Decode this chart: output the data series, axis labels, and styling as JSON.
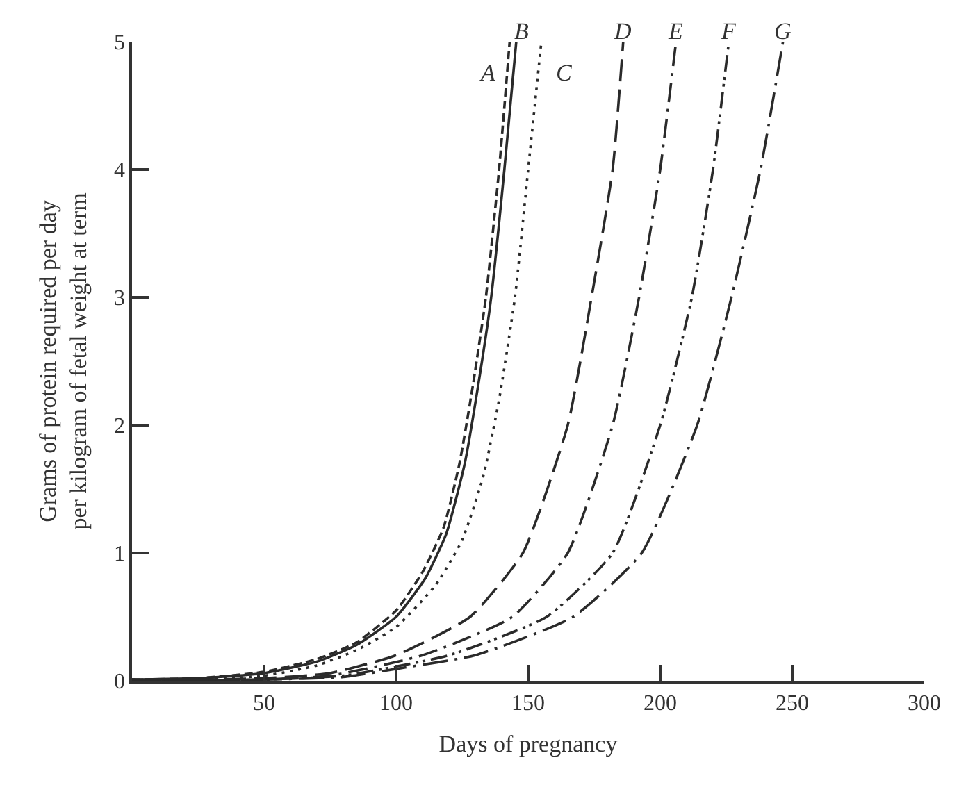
{
  "chart_data": {
    "type": "line",
    "xlabel": "Days of pregnancy",
    "ylabel": "Grams of protein required per day\nper kilogram of fetal weight at term",
    "xlim": [
      0,
      300
    ],
    "xticks": [
      50,
      100,
      150,
      200,
      250,
      300
    ],
    "ylim": [
      0,
      5
    ],
    "yticks": [
      0,
      1,
      2,
      3,
      4,
      5
    ],
    "legend": false,
    "marker": "none",
    "series": [
      {
        "name": "A",
        "color": "#2a2a2a",
        "line_style": "dashed",
        "x": [
          0,
          25,
          50,
          70,
          85,
          100,
          110,
          118,
          124,
          129,
          134,
          139,
          143
        ],
        "values": [
          0.01,
          0.02,
          0.07,
          0.17,
          0.3,
          0.55,
          0.85,
          1.2,
          1.7,
          2.3,
          3.0,
          4.0,
          5.0
        ]
      },
      {
        "name": "B",
        "color": "#2a2a2a",
        "line_style": "solid",
        "x": [
          0,
          25,
          50,
          70,
          85,
          100,
          111,
          119,
          126,
          131,
          136,
          141,
          145.5
        ],
        "values": [
          0.01,
          0.02,
          0.06,
          0.15,
          0.28,
          0.5,
          0.8,
          1.15,
          1.7,
          2.3,
          3.0,
          4.0,
          5.0
        ]
      },
      {
        "name": "C",
        "color": "#2a2a2a",
        "line_style": "dotted",
        "x": [
          0,
          25,
          50,
          70,
          85,
          100,
          115,
          125,
          133,
          139,
          145,
          150,
          155
        ],
        "values": [
          0.01,
          0.01,
          0.04,
          0.12,
          0.24,
          0.42,
          0.75,
          1.1,
          1.6,
          2.2,
          3.0,
          4.0,
          5.0
        ]
      },
      {
        "name": "D",
        "color": "#2a2a2a",
        "line_style": "longdash",
        "x": [
          0,
          50,
          75,
          100,
          128,
          148,
          165,
          174,
          182,
          186
        ],
        "values": [
          0.0,
          0.02,
          0.06,
          0.2,
          0.5,
          1.0,
          2.0,
          3.0,
          4.0,
          5.0
        ]
      },
      {
        "name": "E",
        "color": "#2a2a2a",
        "line_style": "dashdot",
        "x": [
          0,
          50,
          75,
          110,
          144,
          165,
          182,
          192,
          200,
          206
        ],
        "values": [
          0.0,
          0.01,
          0.04,
          0.2,
          0.5,
          1.0,
          2.0,
          3.0,
          4.0,
          5.0
        ]
      },
      {
        "name": "F",
        "color": "#2a2a2a",
        "line_style": "dashdotdot",
        "x": [
          0,
          50,
          80,
          120,
          157,
          182,
          200,
          212,
          220,
          226
        ],
        "values": [
          0.0,
          0.01,
          0.04,
          0.2,
          0.5,
          1.0,
          2.0,
          3.0,
          4.0,
          5.0
        ]
      },
      {
        "name": "G",
        "color": "#2a2a2a",
        "line_style": "longdashdot",
        "x": [
          0,
          50,
          80,
          102,
          130,
          167,
          193,
          214,
          227,
          238,
          246.5
        ],
        "values": [
          0.0,
          0.01,
          0.03,
          0.1,
          0.2,
          0.5,
          1.0,
          2.0,
          3.0,
          4.0,
          5.0
        ]
      }
    ]
  }
}
